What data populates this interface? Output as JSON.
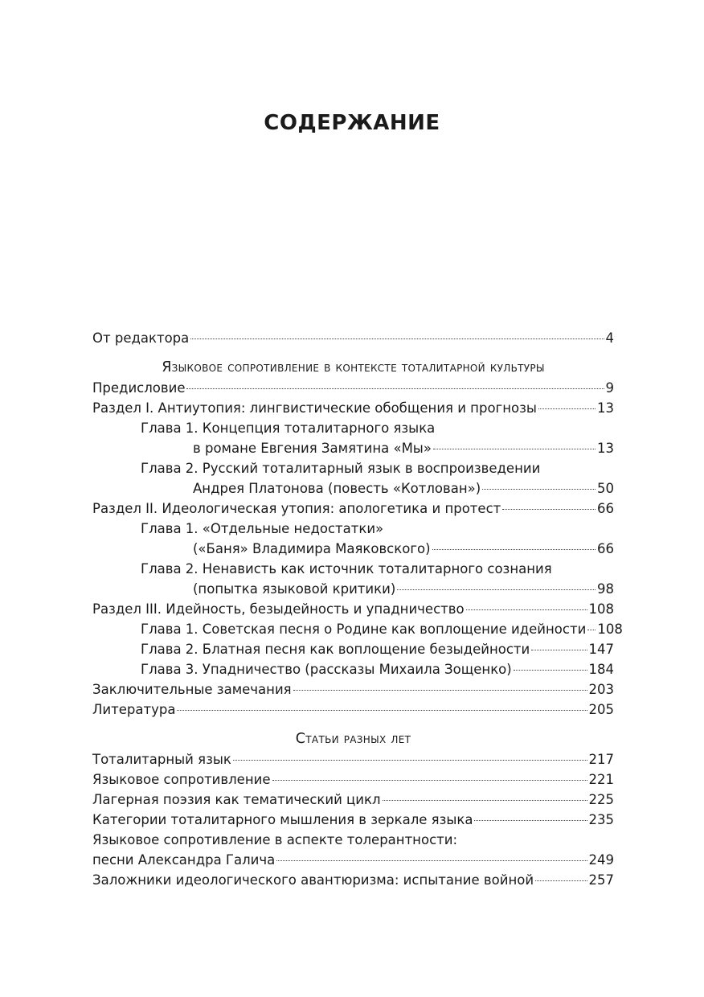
{
  "title": "СОДЕРЖАНИЕ",
  "intro": {
    "lines": [
      "От редактора"
    ],
    "page": "4"
  },
  "sections": [
    {
      "heading": "Языковое сопротивление в контексте тоталитарной культуры",
      "entries": [
        {
          "lines": [
            "Предисловие"
          ],
          "page": "9"
        },
        {
          "lines": [
            "Раздел I. Антиутопия: лингвистические обобщения и прогнозы"
          ],
          "page": "13",
          "chapters": [
            {
              "lines": [
                "Глава 1. Концепция тоталитарного языка",
                "в романе Евгения Замятина «Мы»"
              ],
              "page": "13"
            },
            {
              "lines": [
                "Глава 2. Русский тоталитарный язык в воспроизведении",
                "Андрея Платонова (повесть «Котлован»)"
              ],
              "page": "50"
            }
          ]
        },
        {
          "lines": [
            "Раздел II. Идеологическая утопия: апологетика и протест"
          ],
          "page": "66",
          "chapters": [
            {
              "lines": [
                "Глава 1. «Отдельные недостатки»",
                "(«Баня» Владимира Маяковского)"
              ],
              "page": "66"
            },
            {
              "lines": [
                "Глава 2. Ненависть как источник тоталитарного сознания",
                "(попытка языковой критики)"
              ],
              "page": "98"
            }
          ]
        },
        {
          "lines": [
            "Раздел III. Идейность, безыдейность и упадничество"
          ],
          "page": "108",
          "chapters": [
            {
              "lines": [
                "Глава 1. Советская песня о Родине как воплощение идейности"
              ],
              "page": "108"
            },
            {
              "lines": [
                "Глава 2. Блатная песня как воплощение безыдейности"
              ],
              "page": "147"
            },
            {
              "lines": [
                "Глава 3. Упадничество (рассказы Михаила Зощенко)"
              ],
              "page": "184"
            }
          ]
        },
        {
          "lines": [
            "Заключительные замечания"
          ],
          "page": "203"
        },
        {
          "lines": [
            "Литература"
          ],
          "page": "205"
        }
      ]
    },
    {
      "heading": "Статьи разных лет",
      "entries": [
        {
          "lines": [
            "Тоталитарный язык"
          ],
          "page": "217"
        },
        {
          "lines": [
            "Языковое сопротивление"
          ],
          "page": "221"
        },
        {
          "lines": [
            "Лагерная поэзия как тематический цикл"
          ],
          "page": "225"
        },
        {
          "lines": [
            "Категории тоталитарного мышления в зеркале языка"
          ],
          "page": "235"
        },
        {
          "lines": [
            "Языковое сопротивление в аспекте толерантности:",
            "песни Александра Галича"
          ],
          "page": "249"
        },
        {
          "lines": [
            "Заложники идеологического авантюризма: испытание войной"
          ],
          "page": "257"
        }
      ]
    }
  ]
}
